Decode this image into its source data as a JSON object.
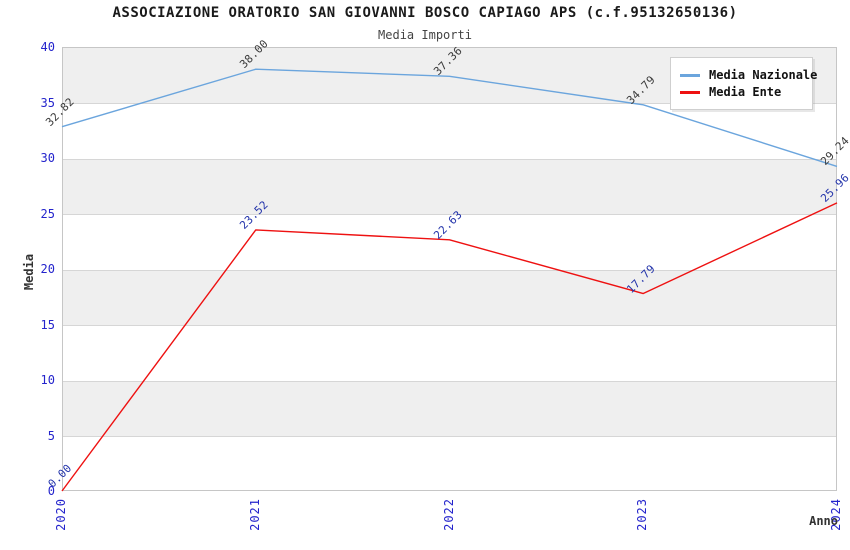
{
  "title": "ASSOCIAZIONE ORATORIO SAN GIOVANNI BOSCO CAPIAGO APS (c.f.95132650136)",
  "subtitle": "Media Importi",
  "chart_data": {
    "type": "line",
    "x": [
      "2020",
      "2021",
      "2022",
      "2023",
      "2024"
    ],
    "series": [
      {
        "name": "Media Nazionale",
        "color": "#6ba5dd",
        "label_color": "#3a3a3a",
        "values": [
          32.82,
          38.0,
          37.36,
          34.79,
          29.24
        ]
      },
      {
        "name": "Media Ente",
        "color": "#ee1111",
        "label_color": "#2233aa",
        "values": [
          0.0,
          23.52,
          22.63,
          17.79,
          25.96
        ]
      }
    ],
    "xlabel": "Anno",
    "ylabel": "Media",
    "ylim": [
      0,
      40
    ],
    "ytick_step": 5,
    "yticks": [
      0,
      5,
      10,
      15,
      20,
      25,
      30,
      35,
      40
    ],
    "grid": "horizontal-bands",
    "band_colors": [
      "#ffffff",
      "#efefef"
    ],
    "tick_label_color": "#2424cc",
    "legend_position": "top-right",
    "value_label_decimals": 2
  }
}
